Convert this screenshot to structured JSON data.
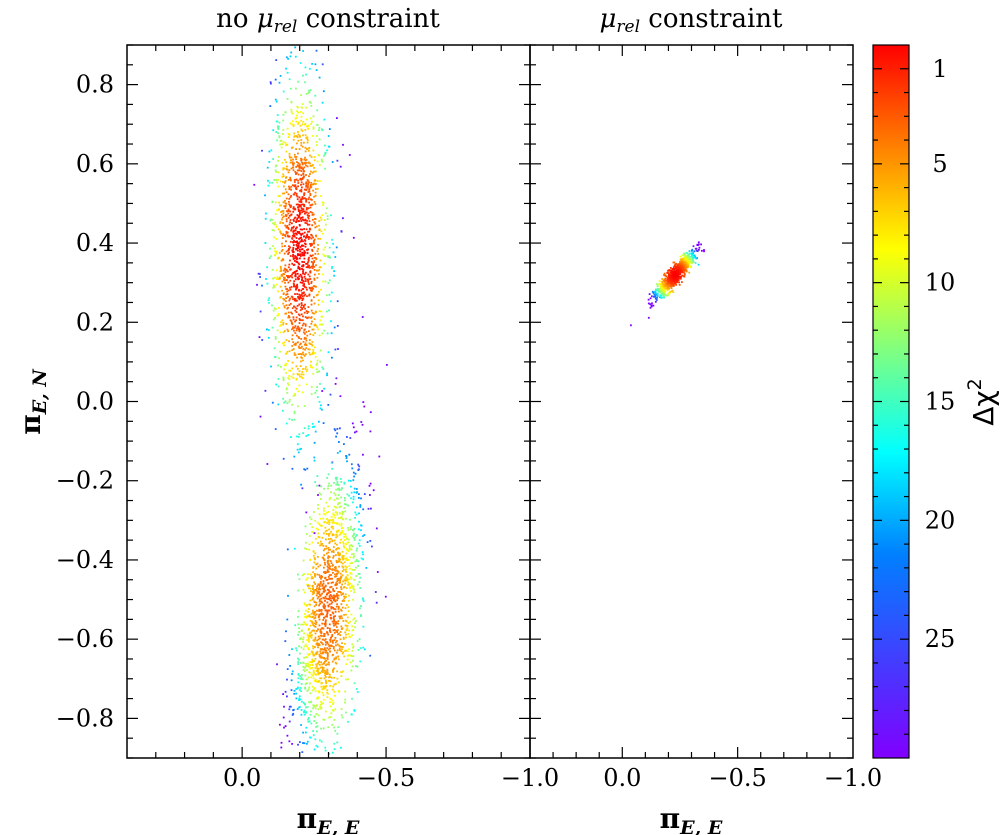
{
  "chart_data": [
    {
      "type": "scatter",
      "title": "no μrel constraint",
      "title_parts": {
        "pre": "no ",
        "mu": "μ",
        "sub": "rel",
        "post": " constraint"
      },
      "xlabel": "πE, E",
      "ylabel": "πE, N",
      "xlim": [
        0.4,
        -1.0
      ],
      "ylim": [
        -0.9,
        0.9
      ],
      "xticks": [
        0.0,
        -0.5,
        -1.0
      ],
      "xtick_labels": [
        "0.0",
        "−0.5",
        "−1.0"
      ],
      "yticks": [
        0.8,
        0.6,
        0.4,
        0.2,
        0.0,
        -0.2,
        -0.4,
        -0.6,
        -0.8
      ],
      "ytick_labels": [
        "0.8",
        "0.6",
        "0.4",
        "0.2",
        "0.0",
        "−0.2",
        "−0.4",
        "−0.6",
        "−0.8"
      ],
      "clusters": [
        {
          "center": [
            -0.2,
            0.38
          ],
          "sigma": [
            0.05,
            0.21
          ],
          "rho": 0.0,
          "peak_delta_chi2": 0
        },
        {
          "center": [
            -0.3,
            -0.52
          ],
          "sigma": [
            0.06,
            0.18
          ],
          "rho": -0.45,
          "peak_delta_chi2": 3
        }
      ]
    },
    {
      "type": "scatter",
      "title": "μrel constraint",
      "title_parts": {
        "pre": "",
        "mu": "μ",
        "sub": "rel",
        "post": " constraint"
      },
      "xlabel": "πE, E",
      "xlim": [
        0.4,
        -1.0
      ],
      "ylim": [
        -0.9,
        0.9
      ],
      "xticks": [
        0.0,
        -0.5,
        -1.0
      ],
      "xtick_labels": [
        "0.0",
        "−0.5",
        "−1.0"
      ],
      "clusters": [
        {
          "center": [
            -0.23,
            0.32
          ],
          "sigma": [
            0.045,
            0.03
          ],
          "rho": -0.9,
          "peak_delta_chi2": 0
        }
      ]
    }
  ],
  "colorbar": {
    "title": "Δχ²",
    "title_base": "Δχ",
    "title_sup": "2",
    "range": [
      0,
      30
    ],
    "ticks": [
      1,
      5,
      10,
      15,
      20,
      25
    ],
    "tick_labels": [
      "1",
      "5",
      "10",
      "15",
      "20",
      "25"
    ],
    "colormap": "rainbow",
    "colors": [
      "#ff0000",
      "#ff8000",
      "#ffff00",
      "#80ff80",
      "#00ffff",
      "#0080ff",
      "#4040ff",
      "#8000ff"
    ]
  }
}
